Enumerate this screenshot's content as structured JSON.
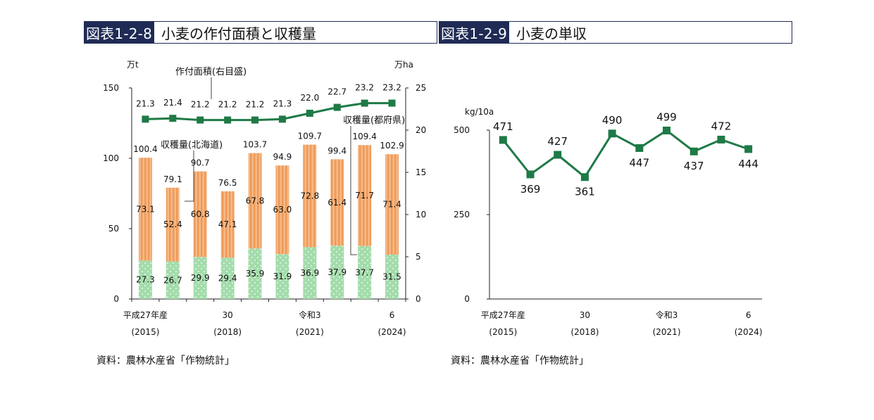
{
  "left": {
    "fig_number": "図表1-2-8",
    "fig_title": "小麦の作付面積と収穫量",
    "source": "資料：農林水産省「作物統計」"
  },
  "right": {
    "fig_number": "図表1-2-9",
    "fig_title": "小麦の単収",
    "source": "資料：農林水産省「作物統計」"
  },
  "colors": {
    "title_bg": "#1f2b55",
    "bar_top": "#f4a86a",
    "bar_bottom": "#9fdba8",
    "line": "#1e7a46"
  },
  "chart_data": [
    {
      "type": "bar",
      "categories": [
        "平成27年産\n(2015)",
        "",
        "",
        "30\n(2018)",
        "",
        "",
        "令和3\n(2021)",
        "",
        "",
        "6\n(2024)"
      ],
      "x_tick_labels": [
        {
          "index": 0,
          "line1": "平成27年産",
          "line2": "(2015)"
        },
        {
          "index": 3,
          "line1": "30",
          "line2": "(2018)"
        },
        {
          "index": 6,
          "line1": "令和3",
          "line2": "(2021)"
        },
        {
          "index": 9,
          "line1": "6",
          "line2": "(2024)"
        }
      ],
      "left_axis_unit": "万t",
      "right_axis_unit": "万ha",
      "left_ylim": [
        0,
        150
      ],
      "left_yticks": [
        0,
        50,
        100,
        150
      ],
      "right_ylim": [
        0,
        25
      ],
      "right_yticks": [
        0,
        5,
        10,
        15,
        20,
        25
      ],
      "series": [
        {
          "name": "収穫量(北海道)",
          "kind": "stacked-bar-bottom",
          "axis": "left",
          "values": [
            27.3,
            26.7,
            29.9,
            29.4,
            35.9,
            31.9,
            36.9,
            37.9,
            37.7,
            31.5
          ]
        },
        {
          "name": "収穫量(都府県)",
          "kind": "stacked-bar-top",
          "axis": "left",
          "values": [
            73.1,
            52.4,
            60.8,
            47.1,
            67.8,
            63.0,
            72.8,
            61.4,
            71.7,
            71.4
          ]
        },
        {
          "name": "作付面積(右目盛)",
          "kind": "line",
          "axis": "right",
          "values": [
            21.3,
            21.4,
            21.2,
            21.2,
            21.2,
            21.3,
            22.0,
            22.7,
            23.2,
            23.2
          ]
        }
      ],
      "totals": [
        100.4,
        79.1,
        90.7,
        76.5,
        103.7,
        94.9,
        109.7,
        99.4,
        109.4,
        102.9
      ],
      "legend_placement": "inline-callouts"
    },
    {
      "type": "line",
      "x_tick_labels": [
        {
          "index": 0,
          "line1": "平成27年産",
          "line2": "(2015)"
        },
        {
          "index": 3,
          "line1": "30",
          "line2": "(2018)"
        },
        {
          "index": 6,
          "line1": "令和3",
          "line2": "(2021)"
        },
        {
          "index": 9,
          "line1": "6",
          "line2": "(2024)"
        }
      ],
      "y_unit": "kg/10a",
      "ylim": [
        0,
        500
      ],
      "yticks": [
        0,
        250,
        500
      ],
      "values": [
        471,
        369,
        427,
        361,
        490,
        447,
        499,
        437,
        472,
        444
      ]
    }
  ]
}
